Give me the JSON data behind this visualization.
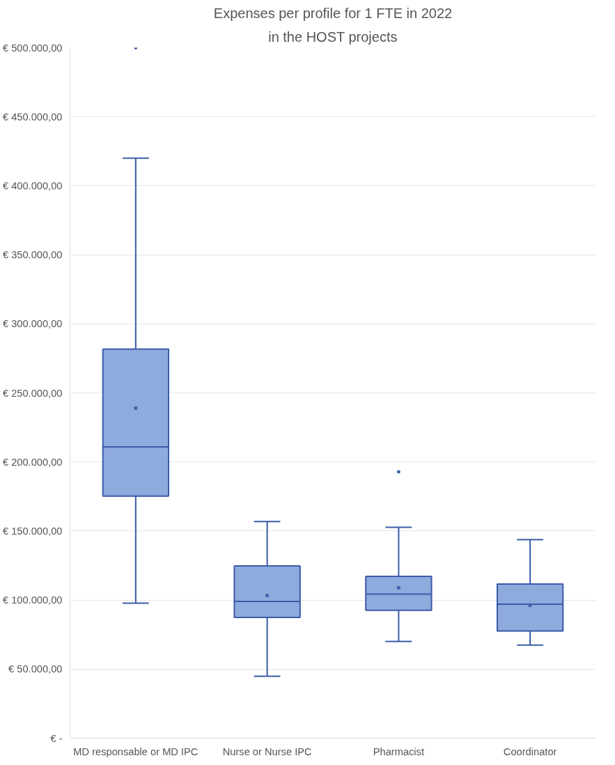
{
  "chart_data": {
    "type": "box",
    "title": "Expenses per profile for 1 FTE in 2022",
    "subtitle": "in the HOST projects",
    "categories": [
      "MD responsable or MD IPC",
      "Nurse or Nurse IPC",
      "Pharmacist",
      "Coordinator"
    ],
    "color": "#8faadc",
    "boxes": [
      {
        "low": 97800,
        "q1": 175300,
        "median": 211000,
        "q3": 281700,
        "high": 420000,
        "mean": 239000,
        "outliers": [
          500000
        ]
      },
      {
        "low": 44900,
        "q1": 87500,
        "median": 99100,
        "q3": 124700,
        "high": 156900,
        "mean": 103300
      },
      {
        "low": 70100,
        "q1": 92600,
        "median": 104300,
        "q3": 117200,
        "high": 152700,
        "mean": 108900,
        "outliers": [
          192900
        ]
      },
      {
        "low": 67400,
        "q1": 77600,
        "median": 97000,
        "q3": 111700,
        "high": 143800,
        "mean": 96200
      }
    ],
    "ylim": [
      0,
      500000
    ],
    "yticks": [
      {
        "value": 0,
        "label": "€ -"
      },
      {
        "value": 50000,
        "label": "€ 50.000,00"
      },
      {
        "value": 100000,
        "label": "€ 100.000,00"
      },
      {
        "value": 150000,
        "label": "€ 150.000,00"
      },
      {
        "value": 200000,
        "label": "€ 200.000,00"
      },
      {
        "value": 250000,
        "label": "€ 250.000,00"
      },
      {
        "value": 300000,
        "label": "€ 300.000,00"
      },
      {
        "value": 350000,
        "label": "€ 350.000,00"
      },
      {
        "value": 400000,
        "label": "€ 400.000,00"
      },
      {
        "value": 450000,
        "label": "€ 450.000,00"
      },
      {
        "value": 500000,
        "label": "€ 500.000,00"
      }
    ],
    "grid": "y"
  }
}
